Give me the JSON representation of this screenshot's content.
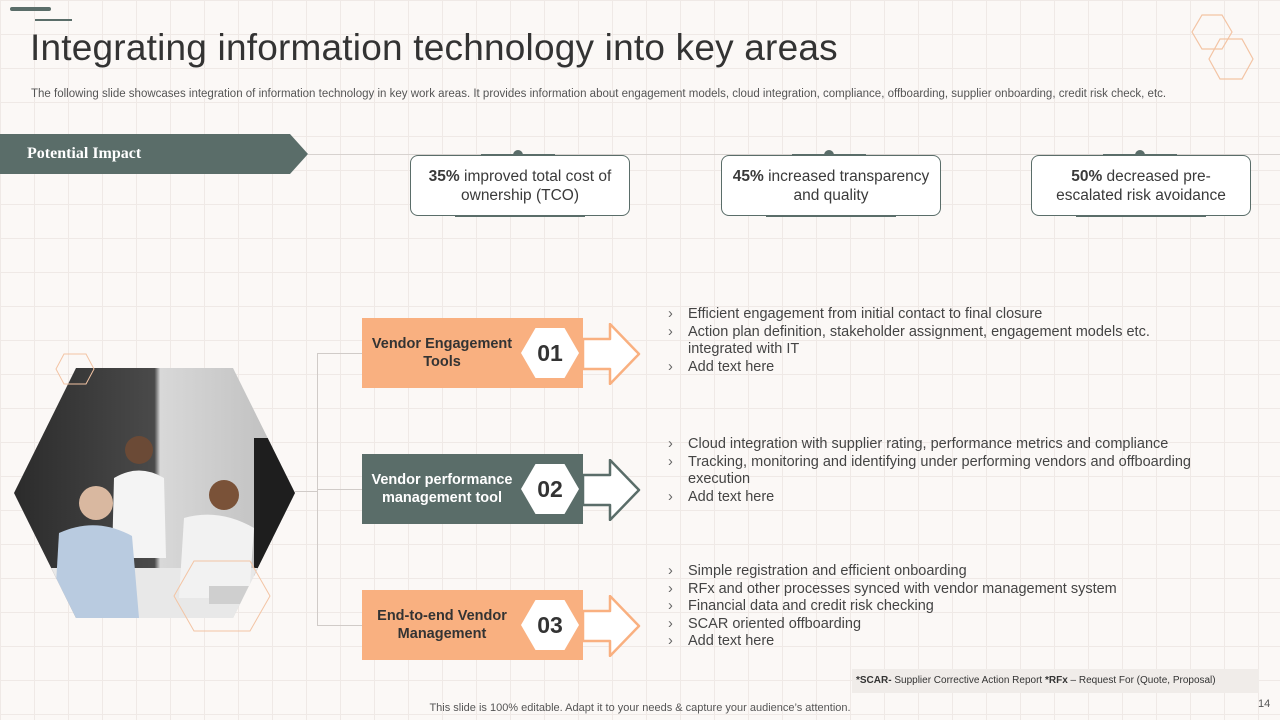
{
  "slide": {
    "title": "Integrating information technology into key areas",
    "subtitle": "The following slide showcases integration of information technology in key work areas. It provides information about engagement models, cloud integration, compliance, offboarding, supplier onboarding, credit risk check, etc.",
    "footer_text": "This slide is 100% editable. Adapt it to your needs & capture your audience’s attention.",
    "page_number": "14"
  },
  "impact": {
    "banner_label": "Potential Impact",
    "cards": [
      {
        "highlight": "35%",
        "text": " improved total cost of ownership (TCO)"
      },
      {
        "highlight": "45%",
        "text": " increased transparency  and quality"
      },
      {
        "highlight": "50%",
        "text": " decreased pre-escalated risk avoidance"
      }
    ]
  },
  "steps": [
    {
      "number": "01",
      "label": "Vendor Engagement Tools",
      "style": "orange",
      "bullets": [
        "Efficient engagement from initial contact to final closure",
        "Action plan definition, stakeholder assignment, engagement models etc. integrated with IT",
        "Add text here"
      ]
    },
    {
      "number": "02",
      "label": "Vendor performance management tool",
      "style": "dark",
      "bullets": [
        "Cloud integration with supplier rating, performance metrics and compliance",
        "Tracking, monitoring and identifying under performing vendors and offboarding execution",
        "Add text here"
      ]
    },
    {
      "number": "03",
      "label": "End-to-end Vendor Management",
      "style": "orange",
      "bullets": [
        "Simple registration and efficient onboarding",
        "RFx and other processes synced with vendor management system",
        "Financial data and credit risk checking",
        "SCAR oriented offboarding",
        "Add text here"
      ]
    }
  ],
  "footnote": {
    "scar_abbr": "*SCAR-",
    "scar_text": " Supplier Corrective Action Report ",
    "rfx_abbr": "*RFx",
    "rfx_text": " – Request For (Quote, Proposal)"
  },
  "colors": {
    "accent_dark": "#5a6d69",
    "accent_orange": "#f9b080",
    "hex_outline": "#f3c4a4"
  }
}
